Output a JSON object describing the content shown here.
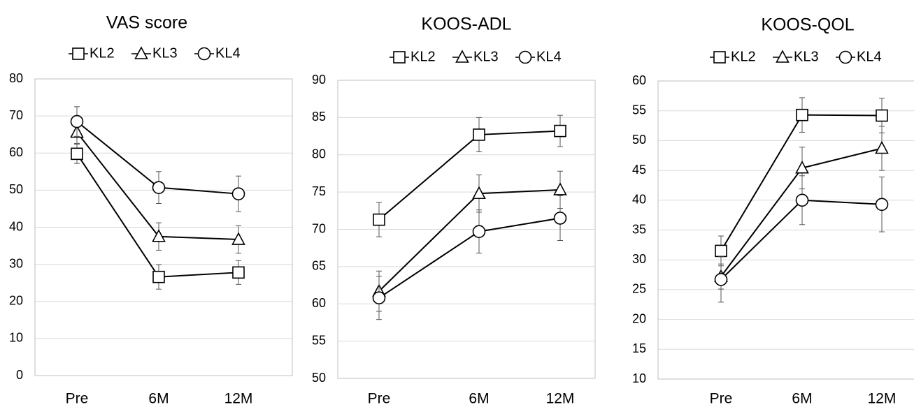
{
  "chart_data": [
    {
      "type": "line",
      "title": "VAS score",
      "categories": [
        "Pre",
        "6M",
        "12M"
      ],
      "ylim": [
        0,
        80
      ],
      "yticks": [
        0,
        10,
        20,
        30,
        40,
        50,
        60,
        70,
        80
      ],
      "grid": true,
      "legend_position": "top",
      "series": [
        {
          "name": "KL2",
          "marker": "square",
          "values": [
            59.8,
            26.6,
            27.8
          ],
          "errors": [
            2.6,
            3.3,
            3.2
          ]
        },
        {
          "name": "KL3",
          "marker": "triangle",
          "values": [
            65.6,
            37.5,
            36.7
          ],
          "errors": [
            3.0,
            3.7,
            3.7
          ]
        },
        {
          "name": "KL4",
          "marker": "circle",
          "values": [
            68.5,
            50.7,
            49.0
          ],
          "errors": [
            4.0,
            4.3,
            4.8
          ]
        }
      ]
    },
    {
      "type": "line",
      "title": "KOOS-ADL",
      "categories": [
        "Pre",
        "6M",
        "12M"
      ],
      "ylim": [
        50,
        90
      ],
      "yticks": [
        50,
        55,
        60,
        65,
        70,
        75,
        80,
        85,
        90
      ],
      "grid": true,
      "legend_position": "top",
      "series": [
        {
          "name": "KL2",
          "marker": "square",
          "values": [
            71.3,
            82.7,
            83.2
          ],
          "errors": [
            2.3,
            2.3,
            2.1
          ]
        },
        {
          "name": "KL3",
          "marker": "triangle",
          "values": [
            61.7,
            74.8,
            75.3
          ],
          "errors": [
            2.7,
            2.5,
            2.5
          ]
        },
        {
          "name": "KL4",
          "marker": "circle",
          "values": [
            60.8,
            69.7,
            71.5
          ],
          "errors": [
            2.9,
            2.9,
            3.0
          ]
        }
      ]
    },
    {
      "type": "line",
      "title": "KOOS-QOL",
      "categories": [
        "Pre",
        "6M",
        "12M"
      ],
      "ylim": [
        10,
        60
      ],
      "yticks": [
        10,
        15,
        20,
        25,
        30,
        35,
        40,
        45,
        50,
        55,
        60
      ],
      "grid": true,
      "legend_position": "top",
      "series": [
        {
          "name": "KL2",
          "marker": "square",
          "values": [
            31.5,
            54.3,
            54.2
          ],
          "errors": [
            2.5,
            2.9,
            2.9
          ]
        },
        {
          "name": "KL3",
          "marker": "triangle",
          "values": [
            27.2,
            45.4,
            48.7
          ],
          "errors": [
            2.1,
            3.5,
            3.7
          ]
        },
        {
          "name": "KL4",
          "marker": "circle",
          "values": [
            26.7,
            40.0,
            39.3
          ],
          "errors": [
            3.8,
            4.1,
            4.6
          ]
        }
      ]
    }
  ]
}
